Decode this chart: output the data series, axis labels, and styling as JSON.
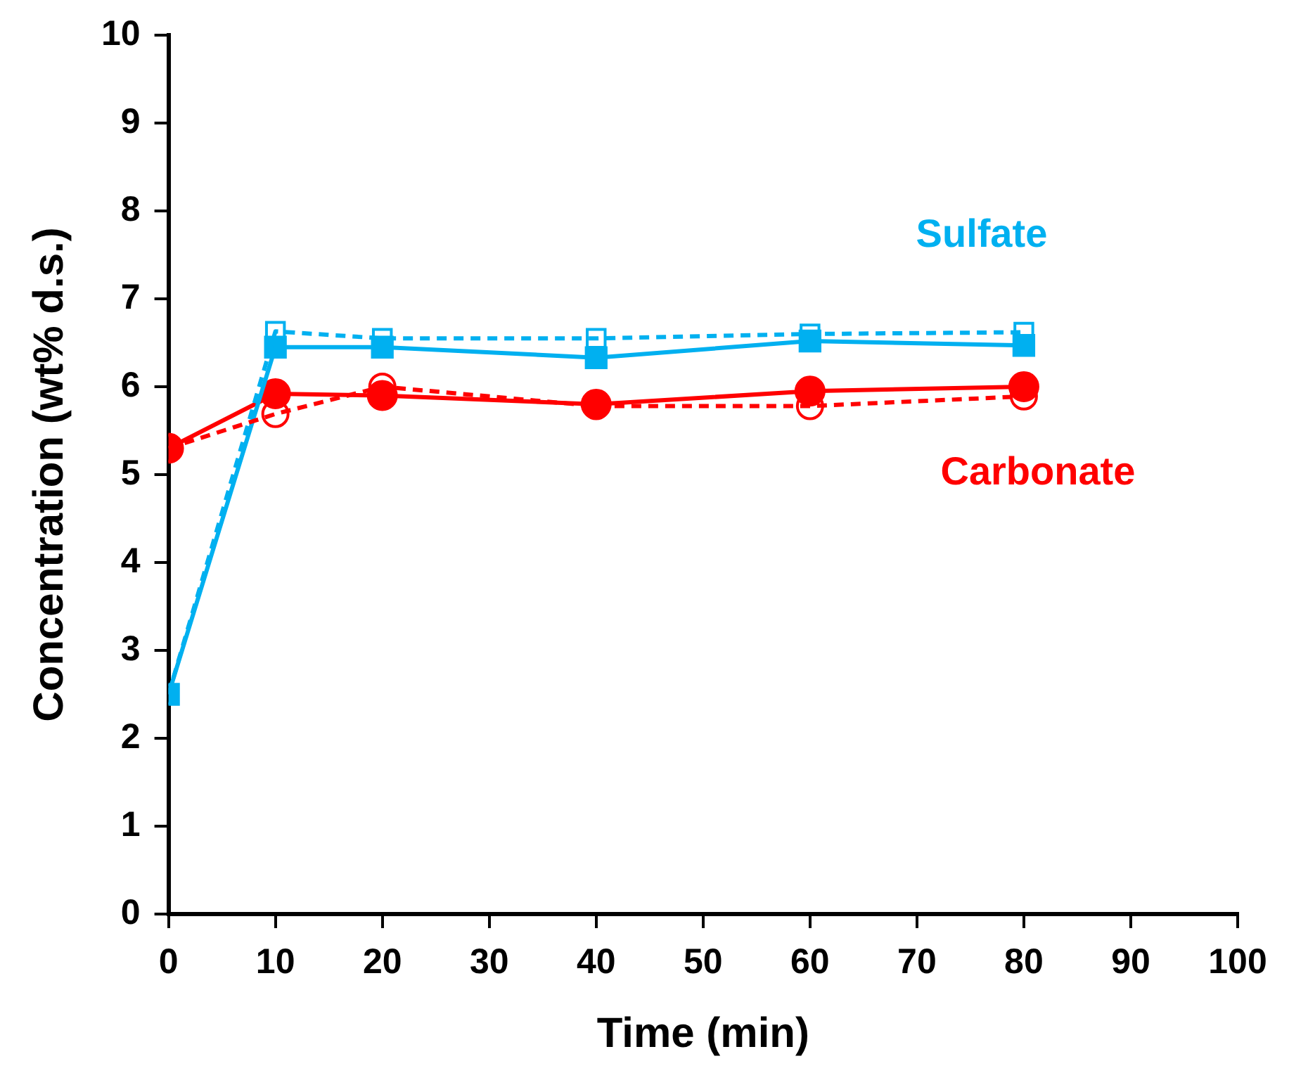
{
  "chart_data": {
    "type": "line",
    "xlabel": "Time (min)",
    "ylabel": "Concentration (wt% d.s.)",
    "x": [
      0,
      10,
      20,
      40,
      60,
      80
    ],
    "series": [
      {
        "name": "Sulfate",
        "color": "#00b0f0",
        "marker": "square",
        "line_style": "solid",
        "values": [
          2.5,
          6.45,
          6.45,
          6.33,
          6.52,
          6.47
        ]
      },
      {
        "color": "#00b0f0",
        "marker": "square",
        "line_style": "dashed",
        "values": [
          2.5,
          6.63,
          6.55,
          6.55,
          6.6,
          6.62
        ]
      },
      {
        "name": "Carbonate",
        "color": "#ff0000",
        "marker": "circle",
        "line_style": "solid",
        "values": [
          5.3,
          5.92,
          5.9,
          5.8,
          5.95,
          6.0
        ]
      },
      {
        "color": "#ff0000",
        "marker": "circle",
        "line_style": "dashed",
        "values": [
          5.3,
          5.69,
          6.0,
          5.78,
          5.78,
          5.89
        ]
      }
    ],
    "xlim": [
      0,
      100
    ],
    "xticks": [
      0,
      10,
      20,
      30,
      40,
      50,
      60,
      70,
      80,
      90,
      100
    ],
    "ylim": [
      0,
      10
    ],
    "yticks": [
      0,
      1,
      2,
      3,
      4,
      5,
      6,
      7,
      8,
      9,
      10
    ],
    "grid": false,
    "legend": false
  }
}
